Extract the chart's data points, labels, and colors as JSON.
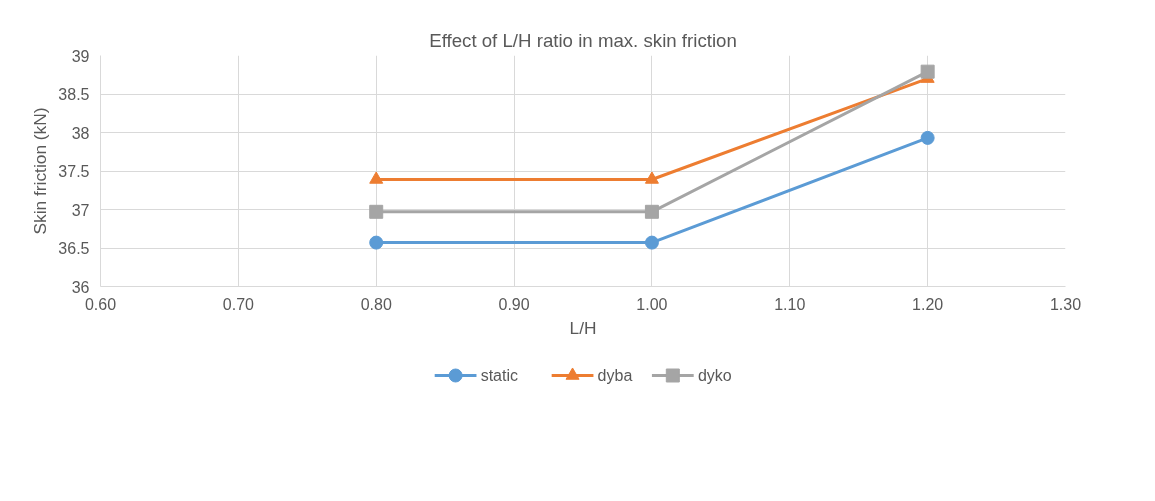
{
  "chart_data": {
    "type": "line",
    "title": "Effect of L/H ratio in max. skin friction",
    "xlabel": "L/H",
    "ylabel": "Skin friction (kN)",
    "x": [
      0.8,
      1.0,
      1.2
    ],
    "series": [
      {
        "name": "static",
        "color": "#5b9bd5",
        "marker": "circle",
        "values": [
          36.57,
          36.57,
          37.93
        ]
      },
      {
        "name": "dyba",
        "color": "#ed7d31",
        "marker": "triangle",
        "values": [
          37.39,
          37.39,
          38.7
        ]
      },
      {
        "name": "dyko",
        "color": "#a5a5a5",
        "marker": "square",
        "values": [
          36.97,
          36.97,
          38.79
        ]
      }
    ],
    "xlim": [
      0.6,
      1.3
    ],
    "xticks": [
      {
        "value": 0.6,
        "label": "0.60"
      },
      {
        "value": 0.7,
        "label": "0.70"
      },
      {
        "value": 0.8,
        "label": "0.80"
      },
      {
        "value": 0.9,
        "label": "0.90"
      },
      {
        "value": 1.0,
        "label": "1.00"
      },
      {
        "value": 1.1,
        "label": "1.10"
      },
      {
        "value": 1.2,
        "label": "1.20"
      },
      {
        "value": 1.3,
        "label": "1.30"
      }
    ],
    "ylim": [
      36,
      39
    ],
    "yticks": [
      36,
      36.5,
      37,
      37.5,
      38,
      38.5,
      39
    ],
    "grid": true,
    "legend": "bottom",
    "line_style": "solid"
  }
}
